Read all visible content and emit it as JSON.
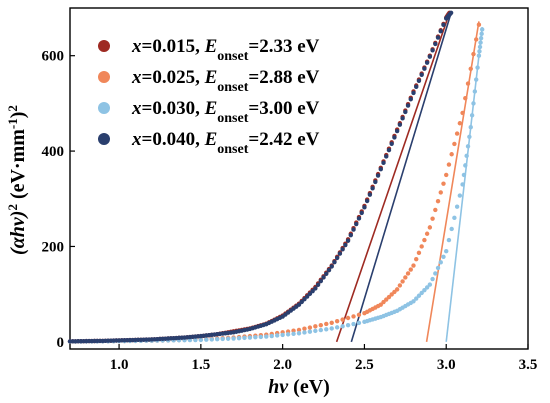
{
  "chart_data": {
    "type": "scatter",
    "xlabel": {
      "main": "hν",
      "unit": " (eV)"
    },
    "ylabel": {
      "open": "(αhν)",
      "sup1": "2",
      "mid": " (eV·mm",
      "sup2": "-1",
      "close": ")",
      "sup3": "2"
    },
    "xlim": [
      0.7,
      3.5
    ],
    "ylim": [
      -15,
      700
    ],
    "xticks": [
      "1.0",
      "1.5",
      "2.0",
      "2.5",
      "3.0",
      "3.5"
    ],
    "yticks": [
      "0",
      "200",
      "400",
      "600"
    ],
    "legend_position": "top-left",
    "series": [
      {
        "name_prefix": "x",
        "name_x": "=0.015, ",
        "name_e": "E",
        "name_sub": "onset",
        "name_val": "=2.33 eV",
        "color": "#9e2a22",
        "onset": 2.33,
        "fit_line": [
          [
            2.33,
            0
          ],
          [
            3.02,
            690
          ]
        ],
        "points": [
          [
            0.7,
            1
          ],
          [
            0.8,
            1.5
          ],
          [
            0.9,
            2
          ],
          [
            1.0,
            3
          ],
          [
            1.1,
            4
          ],
          [
            1.2,
            5
          ],
          [
            1.3,
            7
          ],
          [
            1.4,
            9
          ],
          [
            1.5,
            12
          ],
          [
            1.6,
            16
          ],
          [
            1.7,
            22
          ],
          [
            1.8,
            28
          ],
          [
            1.9,
            38
          ],
          [
            2.0,
            55
          ],
          [
            2.1,
            80
          ],
          [
            2.2,
            115
          ],
          [
            2.3,
            160
          ],
          [
            2.4,
            215
          ],
          [
            2.5,
            285
          ],
          [
            2.6,
            365
          ],
          [
            2.7,
            445
          ],
          [
            2.8,
            525
          ],
          [
            2.9,
            600
          ],
          [
            3.0,
            680
          ],
          [
            3.02,
            690
          ]
        ]
      },
      {
        "name_prefix": "x",
        "name_x": "=0.025, ",
        "name_e": "E",
        "name_sub": "onset",
        "name_val": "=2.88 eV",
        "color": "#f0875a",
        "onset": 2.88,
        "fit_line": [
          [
            2.88,
            0
          ],
          [
            3.2,
            672
          ]
        ],
        "points": [
          [
            0.7,
            0.5
          ],
          [
            0.9,
            1
          ],
          [
            1.1,
            2
          ],
          [
            1.3,
            3
          ],
          [
            1.5,
            5
          ],
          [
            1.7,
            9
          ],
          [
            1.9,
            15
          ],
          [
            2.1,
            25
          ],
          [
            2.3,
            40
          ],
          [
            2.5,
            60
          ],
          [
            2.6,
            78
          ],
          [
            2.7,
            110
          ],
          [
            2.8,
            160
          ],
          [
            2.9,
            240
          ],
          [
            3.0,
            350
          ],
          [
            3.1,
            480
          ],
          [
            3.2,
            665
          ]
        ]
      },
      {
        "name_prefix": "x",
        "name_x": "=0.030, ",
        "name_e": "E",
        "name_sub": "onset",
        "name_val": "=3.00 eV",
        "color": "#8ec3e4",
        "onset": 3.0,
        "fit_line": [
          [
            3.0,
            0
          ],
          [
            3.22,
            660
          ]
        ],
        "points": [
          [
            0.7,
            0.5
          ],
          [
            0.9,
            1
          ],
          [
            1.1,
            2
          ],
          [
            1.3,
            3
          ],
          [
            1.5,
            4
          ],
          [
            1.7,
            7
          ],
          [
            1.9,
            11
          ],
          [
            2.1,
            18
          ],
          [
            2.3,
            28
          ],
          [
            2.5,
            42
          ],
          [
            2.6,
            52
          ],
          [
            2.7,
            65
          ],
          [
            2.8,
            85
          ],
          [
            2.9,
            120
          ],
          [
            3.0,
            190
          ],
          [
            3.1,
            330
          ],
          [
            3.15,
            450
          ],
          [
            3.2,
            600
          ],
          [
            3.22,
            655
          ]
        ]
      },
      {
        "name_prefix": "x",
        "name_x": "=0.040, ",
        "name_e": "E",
        "name_sub": "onset",
        "name_val": "=2.42 eV",
        "color": "#2a3f6e",
        "onset": 2.42,
        "fit_line": [
          [
            2.42,
            0
          ],
          [
            3.03,
            690
          ]
        ],
        "points": [
          [
            0.7,
            1
          ],
          [
            0.8,
            1.5
          ],
          [
            0.9,
            2
          ],
          [
            1.0,
            3
          ],
          [
            1.1,
            4
          ],
          [
            1.2,
            5
          ],
          [
            1.3,
            7
          ],
          [
            1.4,
            9
          ],
          [
            1.5,
            12
          ],
          [
            1.6,
            16
          ],
          [
            1.7,
            20
          ],
          [
            1.8,
            27
          ],
          [
            1.9,
            37
          ],
          [
            2.0,
            53
          ],
          [
            2.1,
            78
          ],
          [
            2.2,
            112
          ],
          [
            2.3,
            158
          ],
          [
            2.4,
            212
          ],
          [
            2.5,
            282
          ],
          [
            2.6,
            362
          ],
          [
            2.7,
            442
          ],
          [
            2.8,
            522
          ],
          [
            2.9,
            598
          ],
          [
            3.0,
            678
          ],
          [
            3.03,
            690
          ]
        ]
      }
    ]
  }
}
